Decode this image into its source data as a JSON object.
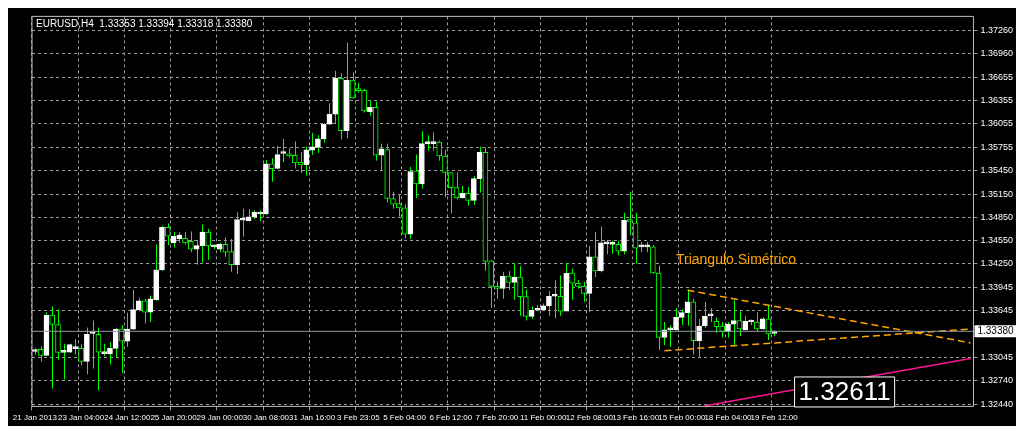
{
  "chart_data": {
    "type": "candlestick",
    "title": "EURUSD,H4  1.33353 1.33394 1.33318 1.33380",
    "color": "#00ff00",
    "categories": [
      "21 Jan 2013",
      null,
      null,
      null,
      null,
      null,
      null,
      null,
      "23 Jan 04:00",
      null,
      null,
      null,
      null,
      null,
      null,
      null,
      "24 Jan 12:00",
      null,
      null,
      null,
      null,
      null,
      null,
      null,
      "25 Jan 20:00",
      null,
      null,
      null,
      null,
      null,
      null,
      null,
      "29 Jan 00:00",
      null,
      null,
      null,
      null,
      null,
      null,
      null,
      "30 Jan 08:00",
      null,
      null,
      null,
      null,
      null,
      null,
      null,
      "31 Jan 16:00",
      null,
      null,
      null,
      null,
      null,
      null,
      null,
      "3 Feb 23:05",
      null,
      null,
      null,
      null,
      null,
      null,
      null,
      "5 Feb 04:00",
      null,
      null,
      null,
      null,
      null,
      null,
      null,
      "6 Feb 12:00",
      null,
      null,
      null,
      null,
      null,
      null,
      null,
      "7 Feb 20:00",
      null,
      null,
      null,
      null,
      null,
      null,
      null,
      "11 Feb 00:00",
      null,
      null,
      null,
      null,
      null,
      null,
      null,
      "12 Feb 08:00",
      null,
      null,
      null,
      null,
      null,
      null,
      null,
      "13 Feb 16:00",
      null,
      null,
      null,
      null,
      null,
      null,
      null,
      "15 Feb 00:00",
      null,
      null,
      null,
      null,
      null,
      null,
      null,
      "18 Feb 04:00",
      null,
      null,
      null,
      null,
      null,
      null,
      null,
      "19 Feb 12:00",
      null,
      null,
      null,
      null,
      null,
      null,
      null,
      null,
      null,
      null,
      null,
      null,
      null,
      null,
      null,
      null,
      null,
      null,
      null,
      null,
      null,
      null,
      null,
      null,
      null,
      null,
      null,
      null,
      null,
      null,
      null,
      null,
      null,
      null
    ],
    "ohlc": [
      [
        1.3312,
        1.3316,
        1.3308,
        1.3314
      ],
      [
        1.33148,
        1.33188,
        1.32988,
        1.33068
      ],
      [
        1.33068,
        1.3362,
        1.3306,
        1.33588
      ],
      [
        1.33588,
        1.337,
        1.3264,
        1.33468
      ],
      [
        1.33468,
        1.3366,
        1.33012,
        1.33108
      ],
      [
        1.33108,
        1.3322,
        1.3276,
        1.33124
      ],
      [
        1.33112,
        1.3322,
        1.331,
        1.33208
      ],
      [
        1.33156,
        1.3328,
        1.3308,
        1.3318
      ],
      [
        1.3316,
        1.33212,
        1.3294,
        1.32992
      ],
      [
        1.32992,
        1.33428,
        1.32828,
        1.3334
      ],
      [
        1.33352,
        1.3352,
        1.329,
        1.3336
      ],
      [
        1.3334,
        1.33428,
        1.3262,
        1.33112
      ],
      [
        1.33092,
        1.3322,
        1.3306,
        1.33116
      ],
      [
        1.33088,
        1.3324,
        1.32952,
        1.3316
      ],
      [
        1.3316,
        1.3342,
        1.3304,
        1.33408
      ],
      [
        1.33408,
        1.3346,
        1.3284,
        1.33252
      ],
      [
        1.33252,
        1.3362,
        1.3318,
        1.33408
      ],
      [
        1.33408,
        1.33912,
        1.334,
        1.3366
      ],
      [
        1.3366,
        1.33812,
        1.3364,
        1.33772
      ],
      [
        1.33772,
        1.338,
        1.3348,
        1.33628
      ],
      [
        1.33628,
        1.3384,
        1.335,
        1.338
      ],
      [
        1.33788,
        1.345,
        1.33772,
        1.34172
      ],
      [
        1.34172,
        1.3474,
        1.3416,
        1.3472
      ],
      [
        1.3472,
        1.34772,
        1.34492,
        1.34608
      ],
      [
        1.3452,
        1.3466,
        1.3446,
        1.34608
      ],
      [
        1.34572,
        1.3466,
        1.3452,
        1.3462
      ],
      [
        1.3458,
        1.3466,
        1.345,
        1.3452
      ],
      [
        1.3454,
        1.34668,
        1.344,
        1.3444
      ],
      [
        1.3444,
        1.3456,
        1.3424,
        1.34484
      ],
      [
        1.34484,
        1.34756,
        1.34268,
        1.3466
      ],
      [
        1.3466,
        1.347,
        1.343,
        1.3448
      ],
      [
        1.34468,
        1.345,
        1.3444,
        1.34468
      ],
      [
        1.3444,
        1.3452,
        1.344,
        1.345
      ],
      [
        1.345,
        1.34588,
        1.3434,
        1.344
      ],
      [
        1.34408,
        1.34572,
        1.34148,
        1.3424
      ],
      [
        1.3424,
        1.34916,
        1.3412,
        1.3482
      ],
      [
        1.34812,
        1.3496,
        1.346,
        1.3482
      ],
      [
        1.34808,
        1.34956,
        1.348,
        1.34856
      ],
      [
        1.34852,
        1.3494,
        1.34828,
        1.34916
      ],
      [
        1.34892,
        1.3494,
        1.348,
        1.34916
      ],
      [
        1.34892,
        1.35588,
        1.3488,
        1.3554
      ],
      [
        1.3554,
        1.35612,
        1.35308,
        1.35476
      ],
      [
        1.3548,
        1.35772,
        1.35472,
        1.3566
      ],
      [
        1.35672,
        1.3586,
        1.3556,
        1.35672
      ],
      [
        1.35668,
        1.3574,
        1.3562,
        1.3564
      ],
      [
        1.35648,
        1.35828,
        1.3548,
        1.35552
      ],
      [
        1.3556,
        1.35692,
        1.3542,
        1.35524
      ],
      [
        1.35528,
        1.3576,
        1.35388,
        1.3572
      ],
      [
        1.35716,
        1.3594,
        1.35652,
        1.3576
      ],
      [
        1.35752,
        1.35908,
        1.3568,
        1.3586
      ],
      [
        1.3586,
        1.3606,
        1.35812,
        1.36052
      ],
      [
        1.36052,
        1.3632,
        1.3604,
        1.3618
      ],
      [
        1.3618,
        1.3674,
        1.36052,
        1.3664
      ],
      [
        1.3664,
        1.36708,
        1.35852,
        1.35968
      ],
      [
        1.35968,
        1.371,
        1.35868,
        1.3662
      ],
      [
        1.3662,
        1.3672,
        1.3638,
        1.36388
      ],
      [
        1.365,
        1.3658,
        1.3646,
        1.36484
      ],
      [
        1.36488,
        1.36508,
        1.362,
        1.3622
      ],
      [
        1.36212,
        1.36348,
        1.3616,
        1.36268
      ],
      [
        1.36268,
        1.3634,
        1.3558,
        1.35652
      ],
      [
        1.35652,
        1.358,
        1.35452,
        1.35732
      ],
      [
        1.35724,
        1.358,
        1.3504,
        1.35092
      ],
      [
        1.35092,
        1.3518,
        1.3496,
        1.3502
      ],
      [
        1.35028,
        1.3514,
        1.3486,
        1.34972
      ],
      [
        1.34972,
        1.3502,
        1.3458,
        1.34632
      ],
      [
        1.34632,
        1.355,
        1.34572,
        1.3544
      ],
      [
        1.35448,
        1.3566,
        1.351,
        1.3528
      ],
      [
        1.3528,
        1.3596,
        1.3522,
        1.358
      ],
      [
        1.358,
        1.35908,
        1.35708,
        1.358
      ],
      [
        1.358,
        1.35948,
        1.35708,
        1.3582
      ],
      [
        1.3582,
        1.3584,
        1.3558,
        1.3564
      ],
      [
        1.3564,
        1.3572,
        1.35108,
        1.35428
      ],
      [
        1.35428,
        1.35428,
        1.349,
        1.35232
      ],
      [
        1.35232,
        1.35432,
        1.3508,
        1.351
      ],
      [
        1.351,
        1.35252,
        1.35092,
        1.3516
      ],
      [
        1.3516,
        1.3524,
        1.35,
        1.35068
      ],
      [
        1.35068,
        1.3538,
        1.35012,
        1.35348
      ],
      [
        1.35348,
        1.3576,
        1.35168,
        1.35688
      ],
      [
        1.35688,
        1.35748,
        1.3416,
        1.3428
      ],
      [
        1.34288,
        1.343,
        1.3368,
        1.3396
      ],
      [
        1.3396,
        1.3402,
        1.338,
        1.33932
      ],
      [
        1.33932,
        1.34148,
        1.338,
        1.34092
      ],
      [
        1.34092,
        1.34156,
        1.33916,
        1.34012
      ],
      [
        1.34012,
        1.3426,
        1.33788,
        1.3408
      ],
      [
        1.3408,
        1.3422,
        1.3358,
        1.33828
      ],
      [
        1.33828,
        1.3392,
        1.3352,
        1.33572
      ],
      [
        1.33572,
        1.337,
        1.3354,
        1.33652
      ],
      [
        1.33652,
        1.3372,
        1.3364,
        1.33668
      ],
      [
        1.3366,
        1.3374,
        1.3364,
        1.33708
      ],
      [
        1.33708,
        1.339,
        1.3358,
        1.33832
      ],
      [
        1.33832,
        1.3404,
        1.33548,
        1.33832
      ],
      [
        1.33832,
        1.341,
        1.3358,
        1.3364
      ],
      [
        1.3364,
        1.3426,
        1.3364,
        1.34132
      ],
      [
        1.34132,
        1.34188,
        1.33788,
        1.34
      ],
      [
        1.34,
        1.3404,
        1.33932,
        1.3396
      ],
      [
        1.3396,
        1.3402,
        1.3376,
        1.33868
      ],
      [
        1.33868,
        1.3448,
        1.33628,
        1.3434
      ],
      [
        1.3434,
        1.3466,
        1.3408,
        1.3416
      ],
      [
        1.3416,
        1.34732,
        1.3414,
        1.3452
      ],
      [
        1.34508,
        1.3456,
        1.34372,
        1.34508
      ],
      [
        1.345,
        1.34548,
        1.3438,
        1.345
      ],
      [
        1.345,
        1.34548,
        1.3436,
        1.34412
      ],
      [
        1.34412,
        1.34908,
        1.34372,
        1.34812
      ],
      [
        1.34812,
        1.3518,
        1.3462,
        1.34796
      ],
      [
        1.3478,
        1.34908,
        1.34252,
        1.34452
      ],
      [
        1.34468,
        1.34532,
        1.344,
        1.34468
      ],
      [
        1.34468,
        1.34532,
        1.344,
        1.34468
      ],
      [
        1.34468,
        1.34492,
        1.3412,
        1.34132
      ],
      [
        1.34132,
        1.34228,
        1.3314,
        1.333
      ],
      [
        1.333,
        1.335,
        1.332,
        1.334
      ],
      [
        1.334,
        1.3346,
        1.3318,
        1.334
      ],
      [
        1.334,
        1.3368,
        1.33392,
        1.3356
      ],
      [
        1.3356,
        1.3366,
        1.3346,
        1.3362
      ],
      [
        1.3362,
        1.3392,
        1.33452,
        1.3376
      ],
      [
        1.3376,
        1.338,
        1.3308,
        1.3326
      ],
      [
        1.3326,
        1.3354,
        1.3304,
        1.33448
      ],
      [
        1.33448,
        1.3376,
        1.3342,
        1.33572
      ],
      [
        1.3358,
        1.3368,
        1.335,
        1.3358
      ],
      [
        1.33508,
        1.3356,
        1.3336,
        1.3344
      ],
      [
        1.33448,
        1.335,
        1.333,
        1.3338
      ],
      [
        1.3338,
        1.335,
        1.333,
        1.33472
      ],
      [
        1.33472,
        1.3378,
        1.332,
        1.3352
      ],
      [
        1.3352,
        1.3364,
        1.3332,
        1.33412
      ],
      [
        1.334,
        1.3358,
        1.33388,
        1.33508
      ],
      [
        1.335,
        1.33532,
        1.3346,
        1.335
      ],
      [
        1.335,
        1.33628,
        1.33372,
        1.33412
      ],
      [
        1.33412,
        1.3356,
        1.334,
        1.3354
      ],
      [
        1.3354,
        1.3372,
        1.33268,
        1.33348
      ],
      [
        1.33353,
        1.33394,
        1.33318,
        1.3338
      ],
      null,
      null,
      null,
      null,
      null,
      null,
      null,
      null,
      null,
      null,
      null,
      null,
      null,
      null,
      null,
      null,
      null,
      null,
      null,
      null,
      null,
      null,
      null,
      null,
      null,
      null,
      null,
      null,
      null,
      null,
      null,
      null,
      null,
      null
    ],
    "series": [
      {
        "type": "line",
        "color": "#ffa500",
        "line_style": "dashed",
        "values": [
          null,
          null,
          null,
          null,
          null,
          null,
          null,
          null,
          null,
          null,
          null,
          null,
          null,
          null,
          null,
          null,
          null,
          null,
          null,
          null,
          null,
          null,
          null,
          null,
          null,
          null,
          null,
          null,
          null,
          null,
          null,
          null,
          null,
          null,
          null,
          null,
          null,
          null,
          null,
          null,
          null,
          null,
          null,
          null,
          null,
          null,
          null,
          null,
          null,
          null,
          null,
          null,
          null,
          null,
          null,
          null,
          null,
          null,
          null,
          null,
          null,
          null,
          null,
          null,
          null,
          null,
          null,
          null,
          null,
          null,
          null,
          null,
          null,
          null,
          null,
          null,
          null,
          null,
          null,
          null,
          null,
          null,
          null,
          null,
          null,
          null,
          null,
          null,
          null,
          null,
          null,
          null,
          null,
          null,
          null,
          null,
          null,
          null,
          null,
          null,
          null,
          null,
          null,
          null,
          null,
          null,
          null,
          null,
          null,
          null,
          null,
          null,
          null,
          1.3391,
          null,
          null,
          null,
          null,
          null,
          null,
          null,
          null,
          null,
          null,
          null,
          null,
          null,
          null,
          null,
          null,
          null,
          null,
          null,
          null,
          null,
          null,
          null,
          null,
          null,
          null,
          null,
          null,
          null,
          null,
          null,
          null,
          null,
          null,
          null,
          null,
          null,
          null,
          null,
          null,
          null,
          null,
          null,
          null,
          null,
          null,
          null,
          null,
          1.3323
        ]
      },
      {
        "type": "line",
        "color": "#ffa500",
        "line_style": "dashed",
        "values": [
          null,
          null,
          null,
          null,
          null,
          null,
          null,
          null,
          null,
          null,
          null,
          null,
          null,
          null,
          null,
          null,
          null,
          null,
          null,
          null,
          null,
          null,
          null,
          null,
          null,
          null,
          null,
          null,
          null,
          null,
          null,
          null,
          null,
          null,
          null,
          null,
          null,
          null,
          null,
          null,
          null,
          null,
          null,
          null,
          null,
          null,
          null,
          null,
          null,
          null,
          null,
          null,
          null,
          null,
          null,
          null,
          null,
          null,
          null,
          null,
          null,
          null,
          null,
          null,
          null,
          null,
          null,
          null,
          null,
          null,
          null,
          null,
          null,
          null,
          null,
          null,
          null,
          null,
          null,
          null,
          null,
          null,
          null,
          null,
          null,
          null,
          null,
          null,
          null,
          null,
          null,
          null,
          null,
          null,
          null,
          null,
          null,
          null,
          null,
          null,
          null,
          null,
          null,
          null,
          null,
          null,
          null,
          null,
          null,
          1.3313,
          null,
          null,
          null,
          null,
          null,
          null,
          null,
          null,
          null,
          null,
          null,
          null,
          null,
          null,
          null,
          null,
          null,
          null,
          null,
          null,
          null,
          null,
          null,
          null,
          null,
          null,
          null,
          null,
          null,
          null,
          null,
          null,
          null,
          null,
          null,
          null,
          null,
          null,
          null,
          null,
          null,
          null,
          null,
          null,
          null,
          null,
          null,
          null,
          null,
          null,
          null,
          null,
          1.3341
        ]
      },
      {
        "type": "line",
        "color": "#ff1493",
        "line_style": "solid",
        "values": [
          null,
          null,
          null,
          null,
          null,
          null,
          null,
          null,
          null,
          null,
          null,
          null,
          null,
          null,
          null,
          null,
          null,
          null,
          null,
          null,
          null,
          null,
          null,
          null,
          null,
          null,
          null,
          null,
          null,
          null,
          null,
          null,
          null,
          null,
          null,
          null,
          null,
          null,
          null,
          null,
          null,
          null,
          null,
          null,
          null,
          null,
          null,
          null,
          null,
          null,
          null,
          null,
          null,
          null,
          null,
          null,
          null,
          null,
          null,
          null,
          null,
          null,
          null,
          null,
          null,
          null,
          null,
          null,
          null,
          null,
          null,
          null,
          null,
          null,
          null,
          null,
          null,
          null,
          null,
          null,
          null,
          null,
          null,
          null,
          null,
          null,
          null,
          null,
          null,
          null,
          null,
          null,
          null,
          null,
          null,
          null,
          null,
          null,
          null,
          null,
          null,
          null,
          null,
          null,
          null,
          null,
          null,
          null,
          null,
          null,
          null,
          null,
          null,
          null,
          null,
          null,
          1.3242,
          null,
          null,
          null,
          null,
          null,
          null,
          null,
          null,
          null,
          null,
          null,
          null,
          null,
          null,
          null,
          null,
          null,
          null,
          null,
          null,
          null,
          null,
          null,
          null,
          null,
          null,
          null,
          null,
          null,
          null,
          null,
          null,
          null,
          null,
          null,
          null,
          null,
          null,
          null,
          null,
          null,
          null,
          null,
          null,
          null,
          1.3303
        ]
      }
    ],
    "ylim": [
      1.32412,
      1.3744
    ],
    "yticks": [
      {
        "value": 1.3726,
        "label": "1.37260"
      },
      {
        "value": 1.3696,
        "label": "1.36960"
      },
      {
        "value": 1.36655,
        "label": "1.36655"
      },
      {
        "value": 1.36355,
        "label": "1.36355"
      },
      {
        "value": 1.36055,
        "label": "1.36055"
      },
      {
        "value": 1.35755,
        "label": "1.35755"
      },
      {
        "value": 1.3545,
        "label": "1.35450"
      },
      {
        "value": 1.3515,
        "label": "1.35150"
      },
      {
        "value": 1.3485,
        "label": "1.34850"
      },
      {
        "value": 1.3455,
        "label": "1.34550"
      },
      {
        "value": 1.3425,
        "label": "1.34250"
      },
      {
        "value": 1.33945,
        "label": "1.33945"
      },
      {
        "value": 1.33645,
        "label": "1.33645"
      },
      {
        "value": 1.33045,
        "label": "1.33045"
      },
      {
        "value": 1.3274,
        "label": "1.32740"
      },
      {
        "value": 1.3244,
        "label": "1.32440"
      }
    ],
    "ref_lines": [
      {
        "axis": "y",
        "value": 1.3338,
        "label": "1.33380",
        "color": "#8c9aa8"
      }
    ],
    "colors": [
      "#ffffff",
      "#00ff00",
      "#ffffff",
      "#00ff00",
      "#00ff00",
      "#ffffff",
      "#ffffff",
      "#ffffff",
      "#00ff00",
      "#ffffff",
      "#ffffff",
      "#00ff00",
      "#ffffff",
      "#ffffff",
      "#ffffff",
      "#00ff00",
      "#ffffff",
      "#ffffff",
      "#ffffff",
      "#00ff00",
      "#ffffff",
      "#ffffff",
      "#ffffff",
      "#00ff00",
      "#ffffff",
      "#ffffff",
      "#00ff00",
      "#00ff00",
      "#ffffff",
      "#ffffff",
      "#00ff00",
      "#ffffff",
      "#ffffff",
      "#00ff00",
      "#00ff00",
      "#ffffff",
      "#ffffff",
      "#ffffff",
      "#ffffff",
      "#ffffff",
      "#ffffff",
      "#00ff00",
      "#ffffff",
      "#ffffff",
      "#00ff00",
      "#00ff00",
      "#00ff00",
      "#ffffff",
      "#ffffff",
      "#ffffff",
      "#ffffff",
      "#ffffff",
      "#ffffff",
      "#00ff00",
      "#ffffff",
      "#00ff00",
      "#00ff00",
      "#00ff00",
      "#ffffff",
      "#00ff00",
      "#ffffff",
      "#00ff00",
      "#00ff00",
      "#00ff00",
      "#00ff00",
      "#ffffff",
      "#00ff00",
      "#ffffff",
      "#ffffff",
      "#ffffff",
      "#00ff00",
      "#00ff00",
      "#00ff00",
      "#00ff00",
      "#ffffff",
      "#00ff00",
      "#ffffff",
      "#ffffff",
      "#00ff00",
      "#00ff00",
      "#00ff00",
      "#ffffff",
      "#00ff00",
      "#ffffff",
      "#00ff00",
      "#00ff00",
      "#ffffff",
      "#ffffff",
      "#ffffff",
      "#ffffff",
      "#ffffff",
      "#00ff00",
      "#ffffff",
      "#00ff00",
      "#00ff00",
      "#00ff00",
      "#ffffff",
      "#00ff00",
      "#ffffff",
      "#ffffff",
      "#ffffff",
      "#00ff00",
      "#ffffff",
      "#00ff00",
      "#00ff00",
      "#ffffff",
      "#ffffff",
      "#00ff00",
      "#00ff00",
      "#ffffff",
      "#ffffff",
      "#ffffff",
      "#ffffff",
      "#ffffff",
      "#00ff00",
      "#ffffff",
      "#ffffff",
      "#ffffff",
      "#00ff00",
      "#00ff00",
      "#ffffff",
      "#ffffff",
      "#00ff00",
      "#ffffff",
      "#ffffff",
      "#00ff00",
      "#ffffff",
      "#00ff00",
      "#ffffff",
      null,
      null,
      null,
      null,
      null,
      null,
      null,
      null,
      null,
      null,
      null,
      null,
      null,
      null,
      null,
      null,
      null,
      null,
      null,
      null,
      null,
      null,
      null,
      null,
      null,
      null,
      null,
      null,
      null,
      null,
      null,
      null,
      null,
      null
    ],
    "annotations": [
      "Triangulo Simétrico",
      "1.32611"
    ],
    "grid": true,
    "legend": false
  }
}
